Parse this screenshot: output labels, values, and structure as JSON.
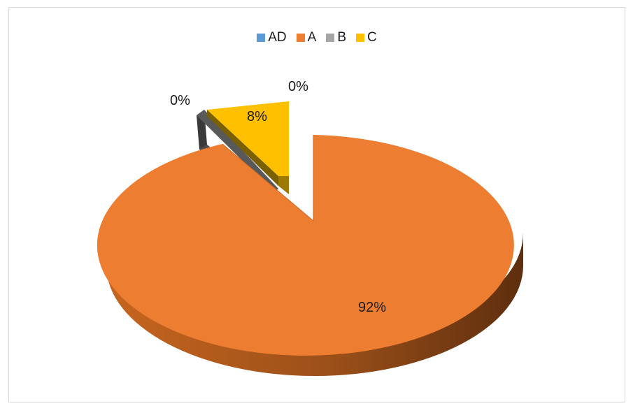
{
  "chart_data": {
    "type": "pie",
    "categories": [
      "AD",
      "A",
      "B",
      "C"
    ],
    "values": [
      0,
      92,
      0,
      8
    ],
    "data_labels": [
      "0%",
      "92%",
      "0%",
      "8%"
    ],
    "colors": [
      "#5b9bd5",
      "#ed7d31",
      "#a5a5a5",
      "#ffc000"
    ],
    "legend_position": "top"
  }
}
